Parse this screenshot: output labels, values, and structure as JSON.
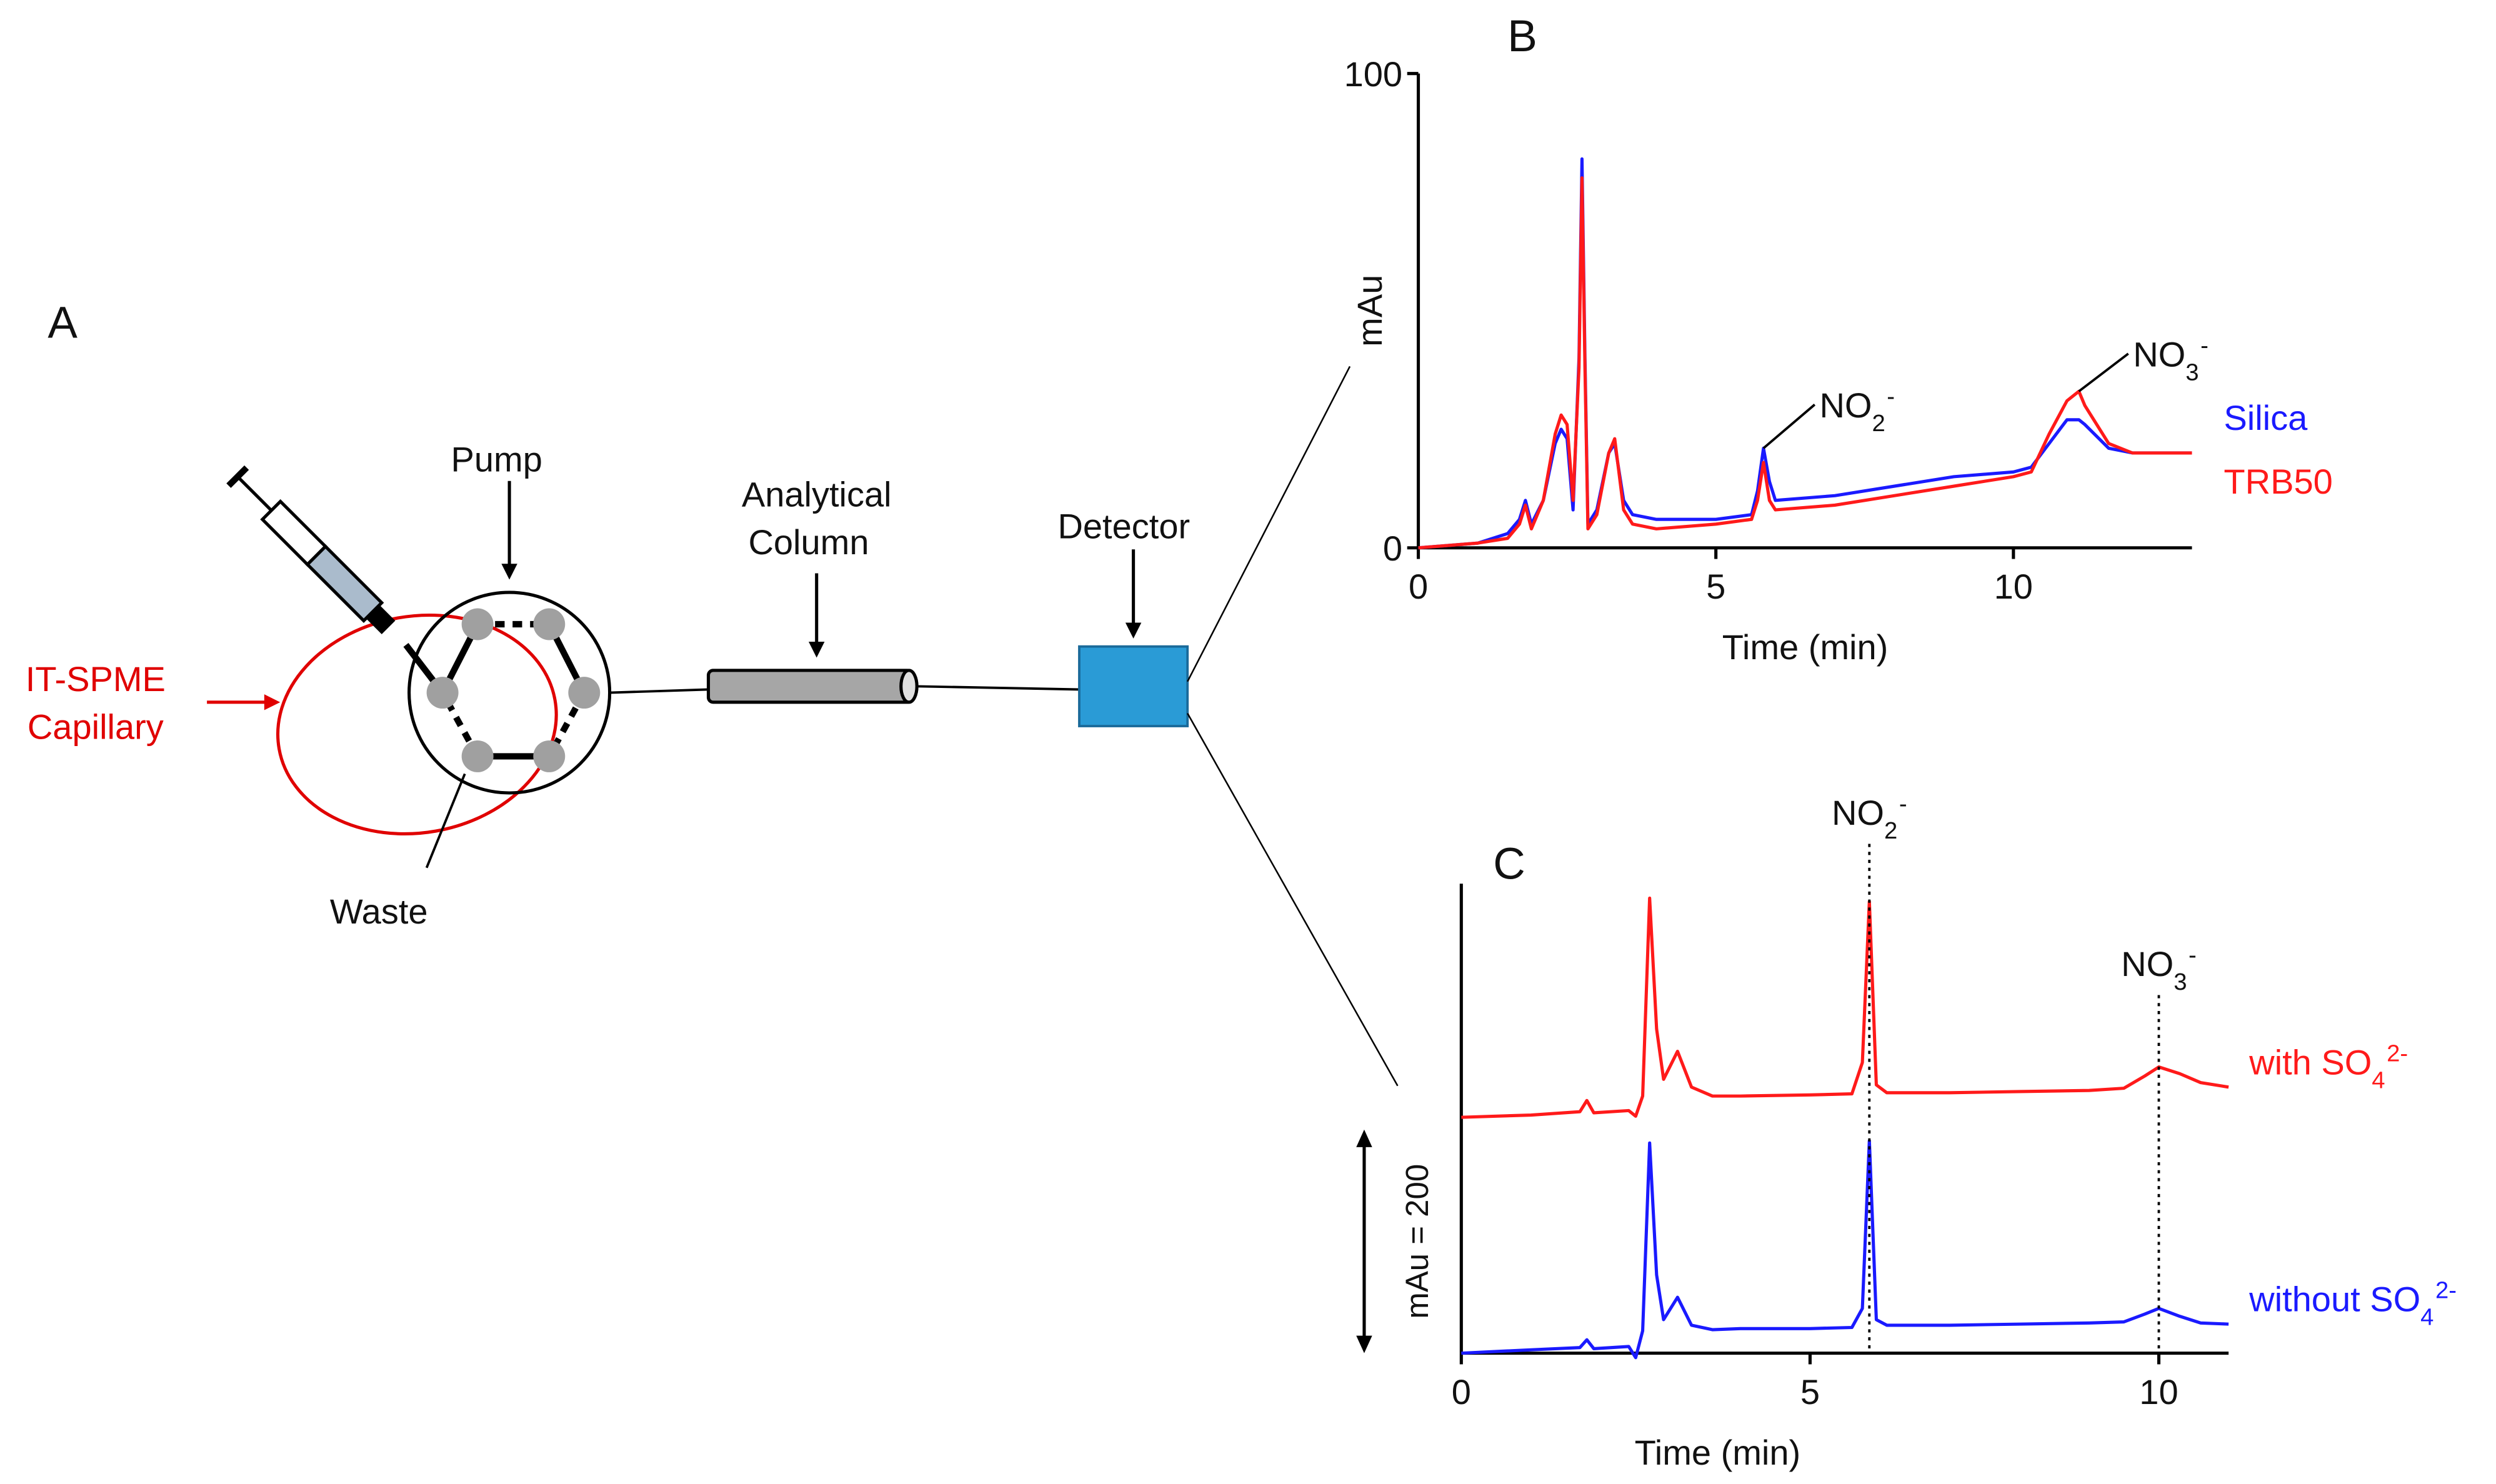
{
  "diagram": {
    "panel": "A",
    "labels": {
      "pump": "Pump",
      "column": [
        "Analytical",
        "Column"
      ],
      "detector": "Detector",
      "capillary": [
        "IT-SPME",
        "Capillary"
      ],
      "waste": "Waste"
    }
  },
  "chart_data": [
    {
      "type": "line",
      "panel": "B",
      "x_label": "Time (min)",
      "y_label": "mAu",
      "xlim": [
        0,
        13
      ],
      "xticks": [
        0,
        5,
        10
      ],
      "ylim": [
        0,
        100
      ],
      "yticks": [
        0,
        100
      ],
      "x": [
        0,
        1,
        1.5,
        1.7,
        1.8,
        1.9,
        2.1,
        2.3,
        2.4,
        2.5,
        2.6,
        2.7,
        2.75,
        2.8,
        2.85,
        3.0,
        3.2,
        3.3,
        3.45,
        3.6,
        4,
        5,
        5.6,
        5.7,
        5.8,
        5.9,
        6.0,
        7,
        8,
        9,
        10,
        10.3,
        10.6,
        10.9,
        11.1,
        11.2,
        11.6,
        12,
        13
      ],
      "series": [
        {
          "name": "Silica",
          "color": "#1a1aff",
          "values": [
            0,
            1,
            3,
            6,
            10,
            5,
            10,
            22,
            25,
            23,
            8,
            40,
            82,
            40,
            5,
            8,
            20,
            22,
            10,
            7,
            6,
            6,
            7,
            12,
            21,
            14,
            10,
            11,
            13,
            15,
            16,
            17,
            22,
            27,
            27,
            26,
            21,
            20,
            20
          ]
        },
        {
          "name": "TRB50",
          "color": "#ff1a1a",
          "values": [
            0,
            1,
            2,
            5,
            9,
            4,
            10,
            24,
            28,
            26,
            10,
            38,
            78,
            38,
            4,
            7,
            20,
            23,
            8,
            5,
            4,
            5,
            6,
            10,
            18,
            10,
            8,
            9,
            11,
            13,
            15,
            16,
            24,
            31,
            33,
            30,
            22,
            20,
            20
          ]
        }
      ],
      "annotations": [
        {
          "text": "NO",
          "sub": "2",
          "sup": "-",
          "x": 5.8,
          "y": 21
        },
        {
          "text": "NO",
          "sub": "3",
          "sup": "-",
          "x": 11.1,
          "y": 33
        }
      ]
    },
    {
      "type": "line",
      "panel": "C",
      "x_label": "Time (min)",
      "xlim": [
        0,
        11
      ],
      "xticks": [
        0,
        5,
        10
      ],
      "ylim": [
        0,
        420
      ],
      "scale_bar": {
        "label": "mAu = 200",
        "value": 200
      },
      "x": [
        0,
        1,
        1.7,
        1.8,
        1.9,
        2.4,
        2.5,
        2.6,
        2.7,
        2.8,
        2.9,
        3.1,
        3.3,
        3.6,
        4,
        5,
        5.6,
        5.75,
        5.85,
        5.95,
        6.1,
        7,
        8,
        9,
        9.5,
        9.8,
        10,
        10.3,
        10.6,
        11
      ],
      "series": [
        {
          "name": {
            "text": "with SO",
            "sub": "4",
            "sup": "2-"
          },
          "color": "#ff1a1a",
          "values": [
            211,
            213,
            216,
            226,
            215,
            217,
            212,
            230,
            407,
            290,
            245,
            270,
            238,
            230,
            230,
            231,
            232,
            260,
            404,
            240,
            233,
            233,
            234,
            235,
            237,
            248,
            256,
            250,
            242,
            238
          ]
        },
        {
          "name": {
            "text": "without SO",
            "sub": "4",
            "sup": "2-"
          },
          "color": "#1a1aff",
          "values": [
            0,
            3,
            5,
            12,
            4,
            6,
            -4,
            20,
            188,
            70,
            30,
            50,
            25,
            21,
            22,
            22,
            23,
            40,
            190,
            30,
            25,
            25,
            26,
            27,
            28,
            35,
            40,
            33,
            27,
            26
          ]
        }
      ],
      "annotations": [
        {
          "text": "NO",
          "sub": "2",
          "sup": "-",
          "x": 5.85
        },
        {
          "text": "NO",
          "sub": "3",
          "sup": "-",
          "x": 10
        }
      ]
    }
  ]
}
